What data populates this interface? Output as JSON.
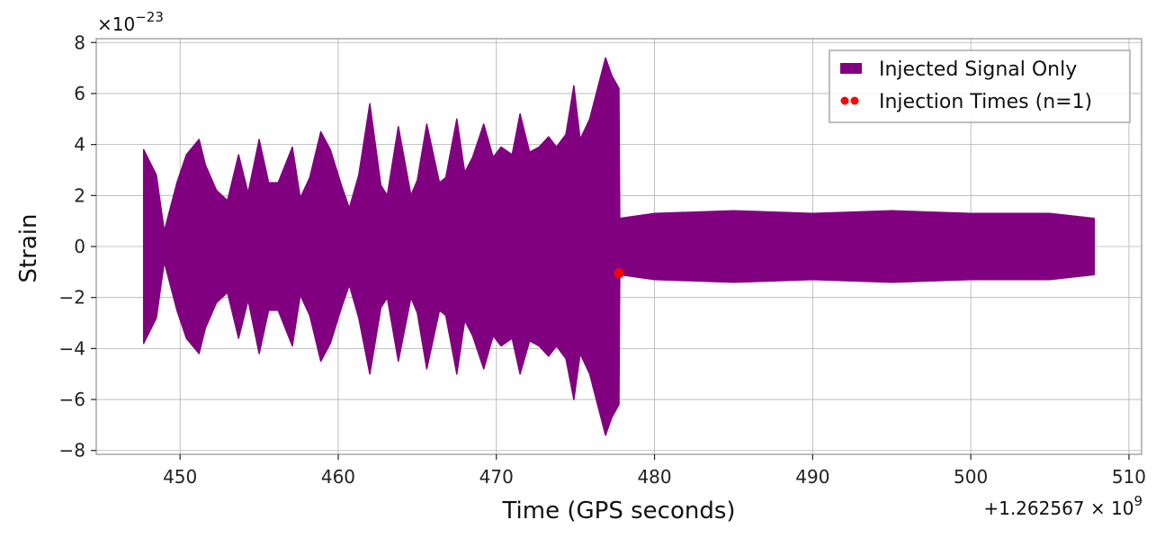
{
  "chart_data": {
    "type": "line",
    "title": "",
    "xlabel": "Time (GPS seconds)",
    "ylabel": "Strain",
    "x_offset_label": "+1.262567 × 10",
    "x_offset_exponent": "9",
    "y_scale_label": "×10",
    "y_scale_exponent": "−23",
    "xlim": [
      444.7,
      510.8
    ],
    "ylim": [
      -8.15,
      8.15
    ],
    "x_ticks": [
      450,
      460,
      470,
      480,
      490,
      500,
      510
    ],
    "x_tick_labels": [
      "450",
      "460",
      "470",
      "480",
      "490",
      "500",
      "510"
    ],
    "y_ticks": [
      -8,
      -6,
      -4,
      -2,
      0,
      2,
      4,
      6,
      8
    ],
    "y_tick_labels": [
      "−8",
      "−6",
      "−4",
      "−2",
      "0",
      "2",
      "4",
      "6",
      "8"
    ],
    "grid": true,
    "legend_position": "top-right",
    "series": [
      {
        "name": "Injected Signal Only",
        "kind": "band",
        "color": "#800080",
        "x": [
          447.7,
          448.5,
          449.0,
          449.8,
          450.4,
          451.2,
          451.6,
          452.3,
          453.0,
          453.7,
          454.3,
          455.0,
          455.6,
          456.2,
          457.1,
          457.6,
          458.2,
          458.9,
          459.5,
          460.2,
          460.7,
          461.3,
          462.0,
          462.7,
          463.1,
          463.8,
          464.6,
          465.0,
          465.6,
          466.4,
          466.8,
          467.5,
          468.0,
          468.5,
          469.2,
          469.8,
          470.3,
          471.0,
          471.5,
          472.1,
          472.7,
          473.3,
          473.8,
          474.4,
          474.9,
          475.3,
          475.9,
          476.4,
          476.9,
          477.3,
          477.75,
          477.8,
          480.0,
          485.0,
          490.0,
          495.0,
          500.0,
          505.0,
          507.8
        ],
        "upper": [
          3.8,
          2.8,
          0.6,
          2.5,
          3.6,
          4.2,
          3.2,
          2.2,
          1.8,
          3.6,
          2.1,
          4.2,
          2.5,
          2.5,
          3.9,
          1.9,
          2.7,
          4.5,
          3.8,
          2.4,
          1.5,
          2.8,
          5.6,
          2.4,
          2.0,
          4.7,
          2.0,
          2.6,
          4.8,
          2.5,
          2.7,
          5.0,
          2.9,
          3.5,
          4.8,
          3.5,
          3.9,
          3.6,
          5.2,
          3.7,
          3.9,
          4.3,
          3.9,
          4.4,
          6.3,
          4.2,
          5.0,
          6.2,
          7.4,
          6.7,
          6.2,
          1.1,
          1.3,
          1.4,
          1.3,
          1.4,
          1.3,
          1.3,
          1.1
        ],
        "lower": [
          -3.8,
          -2.8,
          -0.6,
          -2.5,
          -3.6,
          -4.2,
          -3.2,
          -2.2,
          -1.8,
          -3.6,
          -2.1,
          -4.2,
          -2.5,
          -2.5,
          -3.9,
          -1.9,
          -2.7,
          -4.5,
          -3.8,
          -2.4,
          -1.5,
          -2.8,
          -5.0,
          -2.4,
          -2.0,
          -4.5,
          -2.0,
          -2.6,
          -4.8,
          -2.5,
          -2.7,
          -5.0,
          -2.9,
          -3.5,
          -4.8,
          -3.5,
          -3.9,
          -3.6,
          -5.0,
          -3.7,
          -3.9,
          -4.3,
          -3.9,
          -4.4,
          -6.0,
          -4.2,
          -5.0,
          -6.2,
          -7.4,
          -6.7,
          -6.2,
          -1.1,
          -1.3,
          -1.4,
          -1.3,
          -1.4,
          -1.3,
          -1.3,
          -1.1
        ]
      },
      {
        "name": "Injection Times (n=1)",
        "kind": "scatter",
        "color": "#ff0000",
        "x": [
          477.75
        ],
        "y": [
          -1.05
        ]
      }
    ]
  }
}
